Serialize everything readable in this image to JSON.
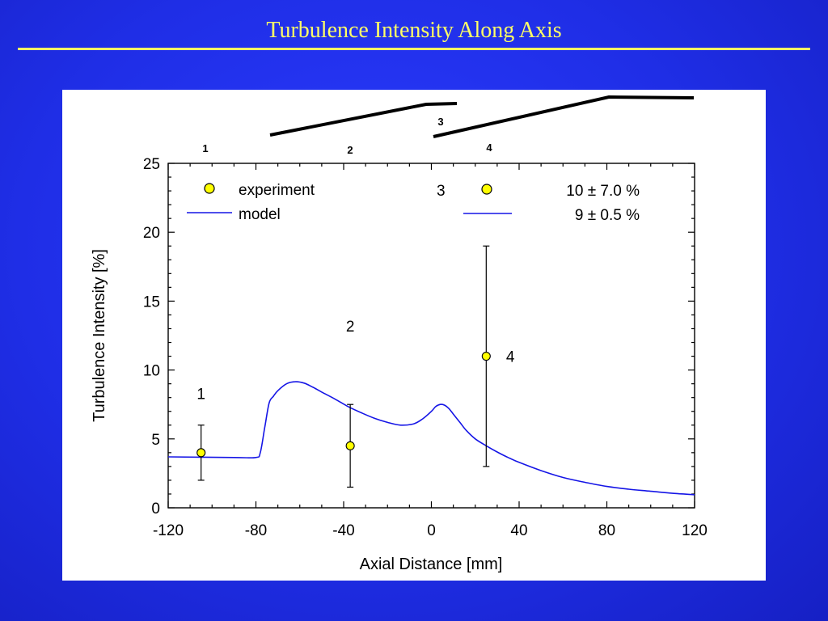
{
  "slide": {
    "title": "Turbulence Intensity Along Axis"
  },
  "chart_data": {
    "type": "line",
    "title": "",
    "xlabel": "Axial Distance  [mm]",
    "ylabel": "Turbulence Intensity  [%]",
    "xlim": [
      -120,
      120
    ],
    "ylim": [
      0,
      25
    ],
    "xticks": [
      -120,
      -80,
      -40,
      0,
      40,
      80,
      120
    ],
    "yticks": [
      0,
      5,
      10,
      15,
      20,
      25
    ],
    "grid": false,
    "colors": {
      "model": "#1515e6",
      "experiment": "#ffff00"
    },
    "series": [
      {
        "name": "experiment",
        "kind": "scatter-errorbar",
        "points": [
          {
            "x": -105,
            "y": 4.0,
            "ylow": 2.0,
            "yhigh": 6.0,
            "label": "1"
          },
          {
            "x": -37,
            "y": 4.5,
            "ylow": 1.5,
            "yhigh": 7.5,
            "label": "2"
          },
          {
            "x": 25,
            "y": 11.0,
            "ylow": 3.0,
            "yhigh": 19.0,
            "label": "4"
          }
        ]
      },
      {
        "name": "model",
        "kind": "line",
        "x": [
          -120,
          -90,
          -80,
          -78,
          -76,
          -74,
          -72,
          -70,
          -66,
          -62,
          -58,
          -54,
          -50,
          -44,
          -38,
          -32,
          -26,
          -20,
          -14,
          -8,
          -4,
          0,
          2,
          4,
          6,
          8,
          10,
          13,
          16,
          20,
          25,
          30,
          35,
          40,
          50,
          60,
          70,
          80,
          90,
          100,
          110,
          120
        ],
        "y": [
          3.7,
          3.65,
          3.65,
          4.0,
          5.8,
          7.6,
          8.1,
          8.5,
          9.0,
          9.15,
          9.05,
          8.75,
          8.4,
          7.9,
          7.35,
          6.9,
          6.5,
          6.2,
          6.0,
          6.1,
          6.45,
          7.0,
          7.35,
          7.5,
          7.45,
          7.2,
          6.8,
          6.2,
          5.6,
          5.0,
          4.5,
          4.05,
          3.65,
          3.3,
          2.7,
          2.2,
          1.85,
          1.55,
          1.35,
          1.2,
          1.05,
          0.95
        ]
      }
    ],
    "point_labels": [
      {
        "text": "1",
        "x": -105,
        "y": 8.3
      },
      {
        "text": "2",
        "x": -37,
        "y": 13.2
      },
      {
        "text": "4",
        "x": 36,
        "y": 11.0
      }
    ],
    "legend": {
      "placement": "top-left",
      "entries": [
        {
          "symbol": "experiment-marker",
          "label": "experiment"
        },
        {
          "symbol": "model-line",
          "label": "model"
        }
      ]
    },
    "annotation": {
      "region_label": "3",
      "experiment_value": "10 ± 7.0 %",
      "model_value": "9 ± 0.5 %"
    },
    "geometry_labels": [
      "1",
      "2",
      "3",
      "4"
    ]
  }
}
